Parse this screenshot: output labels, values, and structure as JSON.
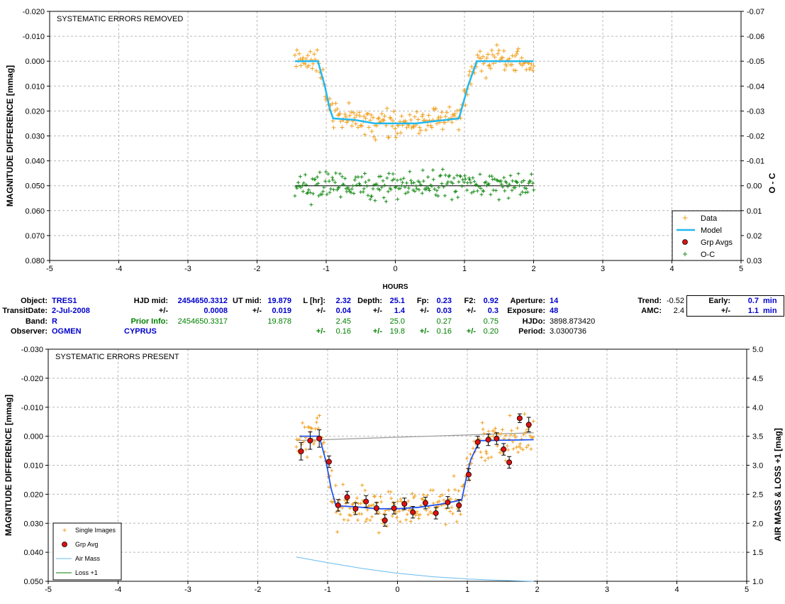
{
  "chart_data": [
    {
      "type": "scatter",
      "title": "SYSTEMATIC ERRORS REMOVED",
      "xlabel": "HOURS",
      "ylabel": "MAGNITUDE DIFFERENCE [mmag]",
      "y2label": "O - C",
      "xlim": [
        -5,
        5
      ],
      "ylim": [
        -0.02,
        0.08
      ],
      "y_inverted": true,
      "y2lim": [
        -0.07,
        0.03
      ],
      "x_ticks": [
        "-5",
        "-4",
        "-3",
        "-2",
        "-1",
        "0",
        "1",
        "2",
        "3",
        "4",
        "5"
      ],
      "y_ticks": [
        "-0.020",
        "-0.010",
        "0.000",
        "0.010",
        "0.020",
        "0.030",
        "0.040",
        "0.050",
        "0.060",
        "0.070",
        "0.080"
      ],
      "y2_ticks": [
        "-0.07",
        "-0.06",
        "-0.05",
        "-0.04",
        "-0.03",
        "-0.02",
        "-0.01",
        "0.00",
        "0.01",
        "0.02",
        "0.03"
      ],
      "grid": true,
      "legend_position": "bottom-right",
      "legend": [
        "Data",
        "Model",
        "Grp Avgs",
        "O-C"
      ],
      "series": [
        {
          "name": "Data",
          "color": "#f0a020",
          "marker": "+"
        },
        {
          "name": "Model",
          "color": "#22b8ee",
          "x": [
            -1.45,
            -1.12,
            -1.02,
            -0.95,
            -0.9,
            -0.6,
            -0.3,
            0,
            0.3,
            0.6,
            0.92,
            0.98,
            1.05,
            1.18,
            2.0
          ],
          "y": [
            0.0,
            0.0,
            0.01,
            0.019,
            0.023,
            0.0235,
            0.025,
            0.025,
            0.025,
            0.024,
            0.023,
            0.017,
            0.01,
            0.0,
            0.0
          ]
        },
        {
          "name": "O-C",
          "color": "#1a8c1a",
          "marker": "+"
        }
      ],
      "reference_line": {
        "y": 0.05,
        "color": "#000000"
      }
    },
    {
      "type": "scatter",
      "title": "SYSTEMATIC ERRORS PRESENT",
      "xlabel": "",
      "ylabel": "MAGNITUDE DIFFERENCE [mmag]",
      "y2label": "AIR MASS & LOSS +1 [mag]",
      "xlim": [
        -5,
        5
      ],
      "ylim": [
        -0.03,
        0.05
      ],
      "y_inverted": true,
      "y2lim": [
        1.0,
        5.0
      ],
      "x_ticks": [
        "-5",
        "-4",
        "-3",
        "-2",
        "-1",
        "0",
        "1",
        "2",
        "3",
        "4",
        "5"
      ],
      "y_ticks": [
        "-0.030",
        "-0.020",
        "-0.010",
        "0.000",
        "0.010",
        "0.020",
        "0.030",
        "0.040",
        "0.050"
      ],
      "y2_ticks": [
        "1.0",
        "1.5",
        "2.0",
        "2.5",
        "3.0",
        "3.5",
        "4.0",
        "4.5",
        "5.0"
      ],
      "grid": true,
      "legend_position": "bottom-left",
      "legend": [
        "Single Images",
        "Grp Avg",
        "Air Mass",
        "Loss +1"
      ],
      "series": [
        {
          "name": "Single Images",
          "color": "#f0a020",
          "marker": "+"
        },
        {
          "name": "Grp Avg",
          "color": "#dd1111",
          "x": [
            -1.38,
            -1.25,
            -1.12,
            -0.98,
            -0.85,
            -0.72,
            -0.6,
            -0.45,
            -0.3,
            -0.18,
            -0.05,
            0.1,
            0.22,
            0.4,
            0.55,
            0.72,
            0.88,
            1.02,
            1.15,
            1.3,
            1.42,
            1.52,
            1.6,
            1.75,
            1.88
          ],
          "y": [
            0.0052,
            0.0015,
            0.0008,
            0.0088,
            0.0238,
            0.021,
            0.025,
            0.0225,
            0.0248,
            0.029,
            0.0248,
            0.0233,
            0.0262,
            0.023,
            0.0265,
            0.0228,
            0.0238,
            0.0132,
            0.002,
            0.0012,
            0.0008,
            0.0045,
            0.009,
            -0.0062,
            -0.004
          ],
          "err": [
            0.003,
            0.003,
            0.003,
            0.002,
            0.002,
            0.002,
            0.002,
            0.002,
            0.002,
            0.002,
            0.002,
            0.002,
            0.002,
            0.002,
            0.002,
            0.002,
            0.002,
            0.002,
            0.002,
            0.002,
            0.002,
            0.002,
            0.002,
            0.0015,
            0.0025
          ]
        },
        {
          "name": "Model",
          "color": "#2255ee",
          "x": [
            -1.4,
            -1.12,
            -1.02,
            -0.95,
            -0.88,
            -0.6,
            -0.3,
            0,
            0.3,
            0.6,
            0.92,
            0.98,
            1.05,
            1.18,
            1.95
          ],
          "y": [
            0.0,
            0.0,
            0.009,
            0.018,
            0.024,
            0.0243,
            0.025,
            0.025,
            0.0245,
            0.0235,
            0.022,
            0.015,
            0.008,
            0.0015,
            0.0012
          ]
        },
        {
          "name": "Air Mass",
          "color": "#66bbee",
          "x": [
            -1.45,
            -1.0,
            -0.5,
            0,
            0.5,
            1.0,
            1.5,
            1.95
          ],
          "y2": [
            1.42,
            1.32,
            1.22,
            1.14,
            1.08,
            1.04,
            1.015,
            1.0
          ]
        },
        {
          "name": "Loss +1",
          "color": "#008000"
        }
      ],
      "gray_line": {
        "x": [
          -1.45,
          1.95
        ],
        "y": [
          0.0015,
          -0.0012
        ],
        "color": "#999999"
      }
    }
  ],
  "info": {
    "rows": [
      [
        "Object:",
        "TRES1",
        "HJD mid:",
        "2454650.3312",
        "UT mid:",
        "19.879",
        "L [hr]:",
        "2.32",
        "Depth:",
        "25.1",
        "Fp:",
        "0.23",
        "F2:",
        "0.92",
        "Aperture:",
        "14",
        "Trend:",
        "-0.52",
        "Early:",
        "0.7",
        "min"
      ],
      [
        "TransitDate:",
        "2-Jul-2008",
        "+/-",
        "0.0008",
        "+/-",
        "0.019",
        "+/-",
        "0.04",
        "+/-",
        "1.4",
        "+/-",
        "0.03",
        "+/-",
        "0.3",
        "Exposure:",
        "48",
        "AMC:",
        "2.4",
        "+/-",
        "1.1",
        "min"
      ],
      [
        "Band:",
        "R",
        "Prior Info:",
        "2454650.3317",
        "",
        "19.878",
        "",
        "2.45",
        "",
        "25.0",
        "",
        "0.27",
        "",
        "0.75",
        "HJDo:",
        "3898.873420",
        "",
        "",
        "",
        "",
        ""
      ],
      [
        "Observer:",
        "OGMEN",
        "CYPRUS",
        "",
        "",
        "",
        "+/-",
        "0.16",
        "+/-",
        "19.8",
        "+/-",
        "0.16",
        "+/-",
        "0.20",
        "Period:",
        "3.0300736",
        "",
        "",
        "",
        "",
        ""
      ]
    ]
  }
}
